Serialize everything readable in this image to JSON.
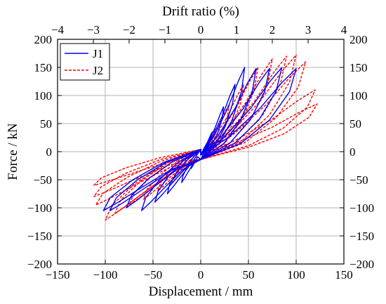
{
  "chart_data": {
    "type": "line",
    "title": "",
    "xlabel": "Displacement / mm",
    "ylabel": "Force / kN",
    "top_xlabel": "Drift ratio (%)",
    "xlim": [
      -150,
      150
    ],
    "ylim": [
      -200,
      200
    ],
    "top_xlim": [
      -4,
      4
    ],
    "x_ticks": [
      -150,
      -100,
      -50,
      0,
      50,
      100,
      150
    ],
    "y_ticks": [
      -200,
      -150,
      -100,
      -50,
      0,
      50,
      100,
      150,
      200
    ],
    "top_x_ticks": [
      -4,
      -3,
      -2,
      -1,
      0,
      1,
      2,
      3,
      4
    ],
    "x_tick_labels": [
      "−150",
      "−100",
      "−50",
      "0",
      "50",
      "100",
      "150"
    ],
    "y_tick_labels": [
      "−200",
      "−150",
      "−100",
      "−50",
      "0",
      "50",
      "100",
      "150",
      "200"
    ],
    "top_x_tick_labels": [
      "−4",
      "−3",
      "−2",
      "−1",
      "0",
      "1",
      "2",
      "3",
      "4"
    ],
    "grid": true,
    "legend_position": "top-left",
    "series": [
      {
        "name": "J1",
        "color": "#0000ff",
        "style": "solid",
        "cycles": [
          {
            "max": [
              12,
              35
            ],
            "min": [
              -10,
              -30
            ]
          },
          {
            "max": [
              24,
              80
            ],
            "min": [
              -20,
              -55
            ]
          },
          {
            "max": [
              36,
              120
            ],
            "min": [
              -35,
              -75
            ]
          },
          {
            "max": [
              46,
              150
            ],
            "min": [
              -48,
              -90
            ]
          },
          {
            "max": [
              58,
              148
            ],
            "min": [
              -62,
              -105
            ]
          },
          {
            "max": [
              72,
              148
            ],
            "min": [
              -78,
              -100
            ]
          },
          {
            "max": [
              85,
              150
            ],
            "min": [
              -95,
              -105
            ]
          },
          {
            "max": [
              100,
              148
            ],
            "min": [
              -102,
              -105
            ]
          }
        ]
      },
      {
        "name": "J2",
        "color": "#ff0000",
        "style": "dashed",
        "cycles": [
          {
            "max": [
              15,
              40
            ],
            "min": [
              -15,
              -30
            ]
          },
          {
            "max": [
              30,
              85
            ],
            "min": [
              -30,
              -55
            ]
          },
          {
            "max": [
              45,
              120
            ],
            "min": [
              -45,
              -70
            ]
          },
          {
            "max": [
              60,
              150
            ],
            "min": [
              -60,
              -85
            ]
          },
          {
            "max": [
              75,
              165
            ],
            "min": [
              -75,
              -95
            ]
          },
          {
            "max": [
              90,
              170
            ],
            "min": [
              -90,
              -110
            ]
          },
          {
            "max": [
              100,
              172
            ],
            "min": [
              -100,
              -122
            ]
          },
          {
            "max": [
              110,
              160
            ],
            "min": [
              -110,
              -95
            ]
          },
          {
            "max": [
              120,
              110
            ],
            "min": [
              -112,
              -80
            ]
          },
          {
            "max": [
              122,
              85
            ],
            "min": [
              -112,
              -60
            ]
          }
        ]
      }
    ]
  }
}
